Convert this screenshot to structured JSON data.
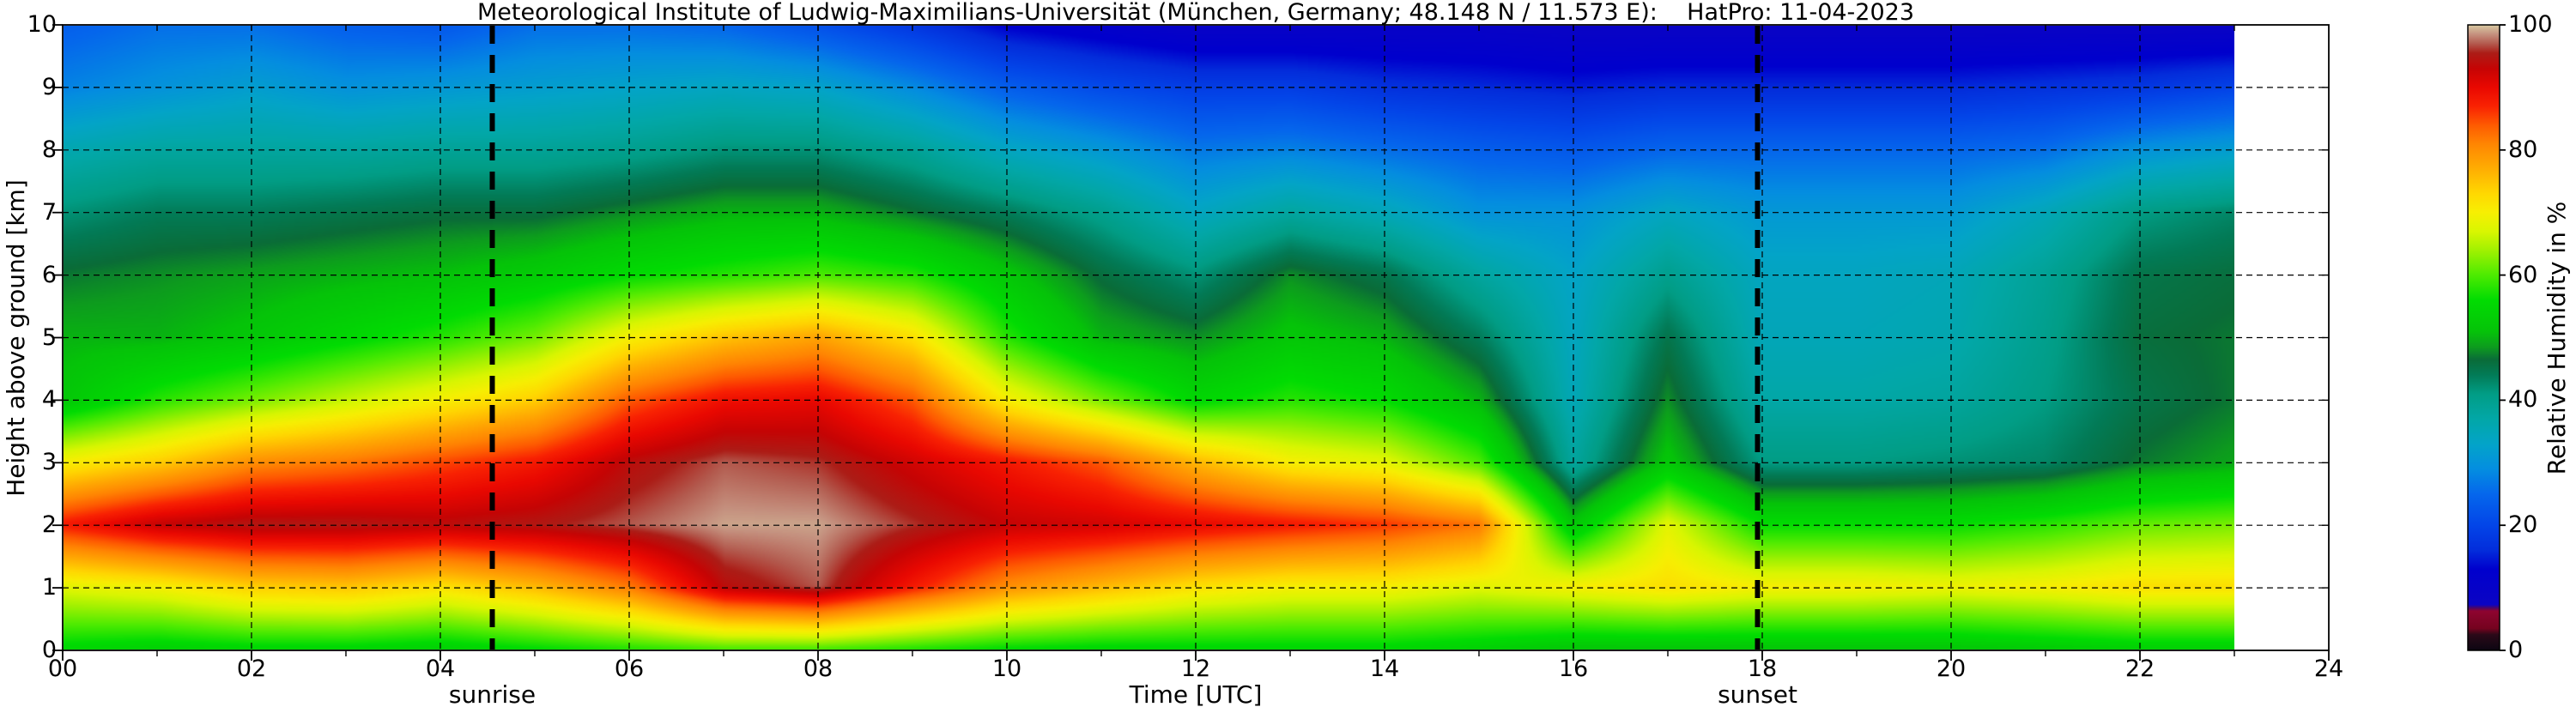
{
  "title": "Meteorological Institute of Ludwig-Maximilians-Universität (München, Germany; 48.148 N / 11.573 E):    HatPro: 11-04-2023",
  "meta": {
    "institute": "Meteorological Institute of Ludwig-Maximilians-Universität",
    "location": "München, Germany",
    "coordinates": "48.148 N / 11.573 E",
    "instrument": "HatPro",
    "date": "11-04-2023"
  },
  "axes": {
    "x": {
      "label": "Time [UTC]",
      "tick_labels": [
        "00",
        "02",
        "04",
        "06",
        "08",
        "10",
        "12",
        "14",
        "16",
        "18",
        "20",
        "22",
        "24"
      ],
      "tick_hours": [
        0,
        2,
        4,
        6,
        8,
        10,
        12,
        14,
        16,
        18,
        20,
        22,
        24
      ],
      "minor_tick_every_hours": 1,
      "range_hours": [
        0,
        24
      ]
    },
    "y": {
      "label": "Height above ground [km]",
      "tick_labels": [
        "0",
        "1",
        "2",
        "3",
        "4",
        "5",
        "6",
        "7",
        "8",
        "9",
        "10"
      ],
      "tick_km": [
        0,
        1,
        2,
        3,
        4,
        5,
        6,
        7,
        8,
        9,
        10
      ],
      "range_km": [
        0,
        10
      ]
    }
  },
  "colorbar": {
    "label": "Relative Humidity in %",
    "tick_labels": [
      "0",
      "20",
      "40",
      "60",
      "80",
      "100"
    ],
    "tick_values": [
      0,
      20,
      40,
      60,
      80,
      100
    ],
    "range": [
      0,
      100
    ]
  },
  "annotations": {
    "sunrise": {
      "label": "sunrise",
      "time_utc": 4.55
    },
    "sunset": {
      "label": "sunset",
      "time_utc": 17.95
    }
  },
  "colors": {
    "background": "#ffffff",
    "grid_and_text": "#000000",
    "sun_lines": "#000000",
    "colormap_stops": [
      [
        0,
        "#0c0612"
      ],
      [
        2.5,
        "#2a0918"
      ],
      [
        3.5,
        "#75031f"
      ],
      [
        6.3,
        "#8e0430"
      ],
      [
        6.8,
        "#4a0668"
      ],
      [
        7.3,
        "#0b04c4"
      ],
      [
        13,
        "#0000cd"
      ],
      [
        16,
        "#032ddb"
      ],
      [
        20,
        "#0345e8"
      ],
      [
        25,
        "#0567ec"
      ],
      [
        29,
        "#048ee0"
      ],
      [
        33,
        "#03a4c8"
      ],
      [
        37,
        "#02a7a7"
      ],
      [
        41,
        "#019d85"
      ],
      [
        44,
        "#027b57"
      ],
      [
        46.5,
        "#0a6c38"
      ],
      [
        48.5,
        "#0d9c1e"
      ],
      [
        51,
        "#05c309"
      ],
      [
        56,
        "#01dc02"
      ],
      [
        60,
        "#4deb01"
      ],
      [
        64,
        "#a1f101"
      ],
      [
        67,
        "#d9f601"
      ],
      [
        70,
        "#f7ef02"
      ],
      [
        73,
        "#ffd801"
      ],
      [
        77,
        "#ffad02"
      ],
      [
        81,
        "#ff8502"
      ],
      [
        84,
        "#fe5a01"
      ],
      [
        87,
        "#f92202"
      ],
      [
        90,
        "#e90801"
      ],
      [
        93,
        "#c60404"
      ],
      [
        95.5,
        "#ac1d17"
      ],
      [
        97,
        "#b35a4e"
      ],
      [
        98.5,
        "#c5917f"
      ],
      [
        100,
        "#d8caa2"
      ]
    ]
  },
  "chart_data": {
    "type": "heatmap",
    "title": "Relative humidity time-height cross-section (HatPro microwave radiometer)",
    "xlabel": "Time [UTC]",
    "ylabel": "Height above ground [km]",
    "value_label": "Relative Humidity in %",
    "value_range": [
      0,
      100
    ],
    "x_hours_utc": [
      0,
      1,
      2,
      3,
      4,
      5,
      6,
      7,
      8,
      9,
      10,
      11,
      12,
      13,
      14,
      15,
      16,
      17,
      18,
      19,
      20,
      21,
      22,
      23
    ],
    "data_end_hour": 23,
    "y_km": [
      0,
      1,
      2,
      3,
      4,
      5,
      6,
      7,
      8,
      9,
      10
    ],
    "values_percent": [
      [
        55,
        68,
        88,
        70,
        52,
        50,
        47,
        42,
        36,
        28,
        24
      ],
      [
        54,
        70,
        93,
        74,
        58,
        50,
        48,
        44,
        38,
        30,
        26
      ],
      [
        55,
        74,
        95,
        80,
        62,
        52,
        49,
        44,
        38,
        32,
        26
      ],
      [
        55,
        75,
        95,
        82,
        66,
        55,
        50,
        45,
        38,
        30,
        24
      ],
      [
        54,
        72,
        94,
        85,
        70,
        58,
        51,
        46,
        39,
        31,
        23
      ],
      [
        56,
        76,
        95,
        88,
        74,
        62,
        53,
        46,
        39,
        32,
        26
      ],
      [
        58,
        82,
        97,
        94,
        84,
        70,
        56,
        48,
        40,
        33,
        26
      ],
      [
        60,
        94,
        99,
        97,
        89,
        75,
        58,
        50,
        42,
        34,
        25
      ],
      [
        60,
        97,
        99,
        96,
        90,
        78,
        60,
        50,
        42,
        33,
        22
      ],
      [
        58,
        88,
        96,
        92,
        84,
        72,
        58,
        47,
        39,
        29,
        18
      ],
      [
        56,
        80,
        93,
        88,
        70,
        58,
        52,
        44,
        34,
        24,
        13
      ],
      [
        55,
        76,
        92,
        84,
        62,
        50,
        46,
        40,
        31,
        21,
        11
      ],
      [
        55,
        72,
        90,
        76,
        55,
        48,
        42,
        34,
        27,
        19,
        9
      ],
      [
        55,
        70,
        88,
        70,
        58,
        52,
        48,
        38,
        28,
        19,
        9
      ],
      [
        55,
        70,
        86,
        68,
        56,
        50,
        45,
        35,
        26,
        17,
        9
      ],
      [
        54,
        68,
        82,
        60,
        50,
        44,
        38,
        30,
        24,
        16,
        9
      ],
      [
        52,
        70,
        52,
        38,
        35,
        34,
        33,
        30,
        23,
        15,
        8
      ],
      [
        52,
        72,
        68,
        52,
        48,
        45,
        40,
        34,
        25,
        16,
        8
      ],
      [
        52,
        70,
        56,
        41,
        37,
        35,
        34,
        31,
        25,
        16,
        8
      ],
      [
        52,
        70,
        56,
        41,
        37,
        35,
        34,
        31,
        25,
        16,
        8
      ],
      [
        52,
        69,
        56,
        42,
        38,
        36,
        35,
        31,
        25,
        16,
        8
      ],
      [
        53,
        70,
        58,
        43,
        41,
        40,
        39,
        35,
        26,
        17,
        8
      ],
      [
        54,
        72,
        61,
        47,
        45,
        46,
        45,
        41,
        30,
        18,
        8
      ],
      [
        54,
        72,
        62,
        49,
        47,
        47,
        46,
        43,
        32,
        20,
        8
      ]
    ]
  }
}
